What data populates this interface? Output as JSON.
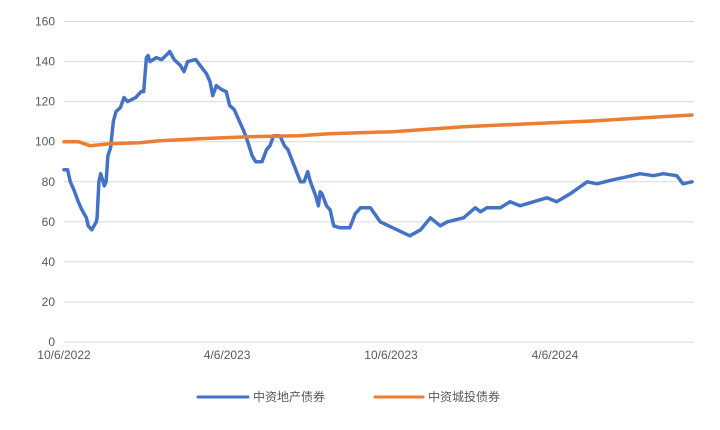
{
  "chart_data": {
    "type": "line",
    "title": "",
    "xlabel": "",
    "ylabel": "",
    "ylim": [
      0,
      160
    ],
    "yticks": [
      0,
      20,
      40,
      60,
      80,
      100,
      120,
      140,
      160
    ],
    "xlim": [
      "2022-10-06",
      "2024-09-06"
    ],
    "xticks": [
      {
        "date": "2022-10-06",
        "label": "10/6/2022"
      },
      {
        "date": "2023-04-06",
        "label": "4/6/2023"
      },
      {
        "date": "2023-10-06",
        "label": "10/6/2023"
      },
      {
        "date": "2024-04-06",
        "label": "4/6/2024"
      }
    ],
    "grid": true,
    "legend_position": "bottom",
    "series": [
      {
        "name": "中资地产债券",
        "color": "#4472C4",
        "points": [
          [
            "2022-10-06",
            86
          ],
          [
            "2022-10-10",
            86
          ],
          [
            "2022-10-13",
            80
          ],
          [
            "2022-10-17",
            76
          ],
          [
            "2022-10-22",
            70
          ],
          [
            "2022-10-26",
            66
          ],
          [
            "2022-10-31",
            62
          ],
          [
            "2022-11-02",
            58
          ],
          [
            "2022-11-06",
            56
          ],
          [
            "2022-11-11",
            60
          ],
          [
            "2022-11-12",
            62
          ],
          [
            "2022-11-14",
            80
          ],
          [
            "2022-11-16",
            84
          ],
          [
            "2022-11-20",
            78
          ],
          [
            "2022-11-22",
            80
          ],
          [
            "2022-11-24",
            93
          ],
          [
            "2022-11-27",
            97
          ],
          [
            "2022-11-30",
            110
          ],
          [
            "2022-12-03",
            115
          ],
          [
            "2022-12-08",
            117
          ],
          [
            "2022-12-12",
            122
          ],
          [
            "2022-12-16",
            120
          ],
          [
            "2022-12-25",
            122
          ],
          [
            "2022-12-31",
            125
          ],
          [
            "2023-01-03",
            125
          ],
          [
            "2023-01-06",
            142
          ],
          [
            "2023-01-08",
            143
          ],
          [
            "2023-01-10",
            140
          ],
          [
            "2023-01-17",
            142
          ],
          [
            "2023-01-23",
            141
          ],
          [
            "2023-01-30",
            144
          ],
          [
            "2023-02-01",
            145
          ],
          [
            "2023-02-06",
            141
          ],
          [
            "2023-02-13",
            138
          ],
          [
            "2023-02-17",
            135
          ],
          [
            "2023-02-21",
            140
          ],
          [
            "2023-03-02",
            141
          ],
          [
            "2023-03-07",
            138
          ],
          [
            "2023-03-14",
            134
          ],
          [
            "2023-03-18",
            130
          ],
          [
            "2023-03-21",
            123
          ],
          [
            "2023-03-25",
            128
          ],
          [
            "2023-03-31",
            126
          ],
          [
            "2023-04-05",
            125
          ],
          [
            "2023-04-09",
            118
          ],
          [
            "2023-04-14",
            116
          ],
          [
            "2023-04-18",
            112
          ],
          [
            "2023-04-25",
            105
          ],
          [
            "2023-04-29",
            100
          ],
          [
            "2023-05-04",
            93
          ],
          [
            "2023-05-08",
            90
          ],
          [
            "2023-05-15",
            90
          ],
          [
            "2023-05-20",
            96
          ],
          [
            "2023-05-24",
            98
          ],
          [
            "2023-05-28",
            103
          ],
          [
            "2023-06-04",
            103
          ],
          [
            "2023-06-09",
            98
          ],
          [
            "2023-06-13",
            96
          ],
          [
            "2023-06-20",
            88
          ],
          [
            "2023-06-27",
            80
          ],
          [
            "2023-07-01",
            80
          ],
          [
            "2023-07-05",
            85
          ],
          [
            "2023-07-08",
            80
          ],
          [
            "2023-07-14",
            73
          ],
          [
            "2023-07-17",
            68
          ],
          [
            "2023-07-19",
            75
          ],
          [
            "2023-07-21",
            74
          ],
          [
            "2023-07-26",
            68
          ],
          [
            "2023-07-30",
            66
          ],
          [
            "2023-08-03",
            58
          ],
          [
            "2023-08-10",
            57
          ],
          [
            "2023-08-21",
            57
          ],
          [
            "2023-08-27",
            64
          ],
          [
            "2023-09-02",
            67
          ],
          [
            "2023-09-13",
            67
          ],
          [
            "2023-09-24",
            60
          ],
          [
            "2023-10-08",
            57
          ],
          [
            "2023-10-27",
            53
          ],
          [
            "2023-11-08",
            56
          ],
          [
            "2023-11-19",
            62
          ],
          [
            "2023-11-30",
            58
          ],
          [
            "2023-12-08",
            60
          ],
          [
            "2023-12-26",
            62
          ],
          [
            "2024-01-08",
            67
          ],
          [
            "2024-01-14",
            65
          ],
          [
            "2024-01-21",
            67
          ],
          [
            "2024-02-05",
            67
          ],
          [
            "2024-02-16",
            70
          ],
          [
            "2024-02-27",
            68
          ],
          [
            "2024-03-13",
            70
          ],
          [
            "2024-03-28",
            72
          ],
          [
            "2024-04-08",
            70
          ],
          [
            "2024-04-23",
            74
          ],
          [
            "2024-05-12",
            80
          ],
          [
            "2024-05-23",
            79
          ],
          [
            "2024-06-10",
            81
          ],
          [
            "2024-06-21",
            82
          ],
          [
            "2024-07-10",
            84
          ],
          [
            "2024-07-25",
            83
          ],
          [
            "2024-08-05",
            84
          ],
          [
            "2024-08-20",
            83
          ],
          [
            "2024-08-27",
            79
          ],
          [
            "2024-09-06",
            80
          ]
        ]
      },
      {
        "name": "中资城投债券",
        "color": "#ED7D31",
        "points": [
          [
            "2022-10-06",
            100
          ],
          [
            "2022-10-22",
            100
          ],
          [
            "2022-11-04",
            98
          ],
          [
            "2022-11-15",
            98.5
          ],
          [
            "2022-11-26",
            99
          ],
          [
            "2022-12-29",
            99.5
          ],
          [
            "2023-01-21",
            100.5
          ],
          [
            "2023-03-06",
            101.5
          ],
          [
            "2023-04-30",
            102.5
          ],
          [
            "2023-06-25",
            103
          ],
          [
            "2023-07-29",
            104
          ],
          [
            "2023-10-08",
            105
          ],
          [
            "2023-12-26",
            107.5
          ],
          [
            "2024-03-09",
            109
          ],
          [
            "2024-05-23",
            110.5
          ],
          [
            "2024-08-05",
            112.5
          ],
          [
            "2024-09-06",
            113.3
          ]
        ]
      }
    ]
  }
}
